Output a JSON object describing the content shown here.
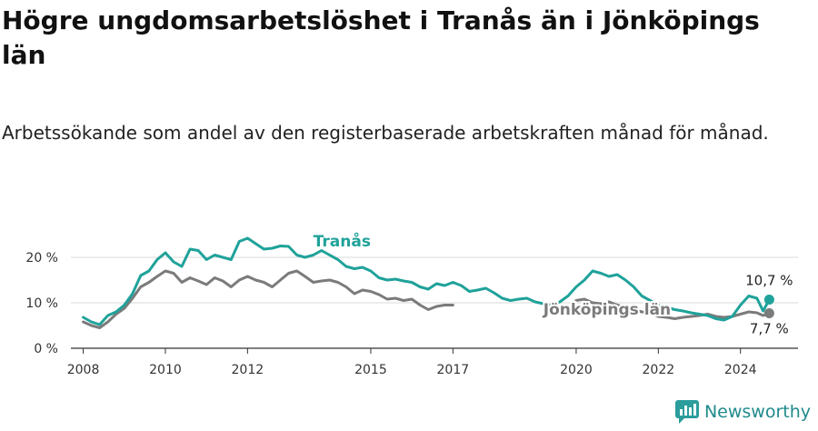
{
  "title": "Högre ungdomsarbetslöshet i Tranås än i Jönköpings län",
  "subtitle": "Arbetssökande som andel av den registerbaserade arbetskraften månad för månad.",
  "brand": {
    "name": "Newsworthy",
    "icon": "bar-chart-logo-icon",
    "color": "#2a9d9c"
  },
  "chart_data": {
    "type": "line",
    "title": "Högre ungdomsarbetslöshet i Tranås än i Jönköpings län",
    "xlabel": "",
    "ylabel": "",
    "xlim": [
      2007.7,
      2025.4
    ],
    "ylim": [
      0,
      25
    ],
    "grid": true,
    "x_ticks": [
      {
        "value": 2008,
        "label": "2008"
      },
      {
        "value": 2010,
        "label": "2010"
      },
      {
        "value": 2012,
        "label": "2012"
      },
      {
        "value": 2015,
        "label": "2015"
      },
      {
        "value": 2017,
        "label": "2017"
      },
      {
        "value": 2020,
        "label": "2020"
      },
      {
        "value": 2022,
        "label": "2022"
      },
      {
        "value": 2024,
        "label": "2024"
      }
    ],
    "y_ticks": [
      {
        "value": 0,
        "label": "0 %"
      },
      {
        "value": 10,
        "label": "10 %"
      },
      {
        "value": 20,
        "label": "20 %"
      }
    ],
    "series": [
      {
        "name": "Tranås",
        "color": "#1fa29a",
        "label_x": 2013.6,
        "label_y": 22.4,
        "end_label": "10,7 %",
        "points": [
          [
            2008.0,
            6.8
          ],
          [
            2008.2,
            5.8
          ],
          [
            2008.4,
            5.2
          ],
          [
            2008.6,
            7.2
          ],
          [
            2008.8,
            8.0
          ],
          [
            2009.0,
            9.5
          ],
          [
            2009.2,
            12.0
          ],
          [
            2009.4,
            16.0
          ],
          [
            2009.6,
            17.0
          ],
          [
            2009.8,
            19.5
          ],
          [
            2010.0,
            21.0
          ],
          [
            2010.2,
            19.0
          ],
          [
            2010.4,
            18.0
          ],
          [
            2010.6,
            21.8
          ],
          [
            2010.8,
            21.5
          ],
          [
            2011.0,
            19.5
          ],
          [
            2011.2,
            20.5
          ],
          [
            2011.4,
            20.0
          ],
          [
            2011.6,
            19.5
          ],
          [
            2011.8,
            23.5
          ],
          [
            2012.0,
            24.2
          ],
          [
            2012.2,
            23.0
          ],
          [
            2012.4,
            21.8
          ],
          [
            2012.6,
            22.0
          ],
          [
            2012.8,
            22.5
          ],
          [
            2013.0,
            22.4
          ],
          [
            2013.2,
            20.5
          ],
          [
            2013.4,
            20.0
          ],
          [
            2013.6,
            20.5
          ],
          [
            2013.8,
            21.5
          ],
          [
            2014.0,
            20.5
          ],
          [
            2014.2,
            19.5
          ],
          [
            2014.4,
            18.0
          ],
          [
            2014.6,
            17.5
          ],
          [
            2014.8,
            17.8
          ],
          [
            2015.0,
            17.0
          ],
          [
            2015.2,
            15.5
          ],
          [
            2015.4,
            15.0
          ],
          [
            2015.6,
            15.2
          ],
          [
            2015.8,
            14.8
          ],
          [
            2016.0,
            14.5
          ],
          [
            2016.2,
            13.5
          ],
          [
            2016.4,
            13.0
          ],
          [
            2016.6,
            14.2
          ],
          [
            2016.8,
            13.8
          ],
          [
            2017.0,
            14.5
          ],
          [
            2017.2,
            13.8
          ],
          [
            2017.4,
            12.5
          ],
          [
            2017.6,
            12.8
          ],
          [
            2017.8,
            13.2
          ],
          [
            2018.0,
            12.2
          ],
          [
            2018.2,
            11.0
          ],
          [
            2018.4,
            10.5
          ],
          [
            2018.6,
            10.8
          ],
          [
            2018.8,
            11.0
          ],
          [
            2019.0,
            10.2
          ],
          [
            2019.2,
            9.8
          ],
          [
            2019.4,
            9.5
          ],
          [
            2019.6,
            10.2
          ],
          [
            2019.8,
            11.5
          ],
          [
            2020.0,
            13.5
          ],
          [
            2020.2,
            15.0
          ],
          [
            2020.4,
            17.0
          ],
          [
            2020.6,
            16.5
          ],
          [
            2020.8,
            15.8
          ],
          [
            2021.0,
            16.2
          ],
          [
            2021.2,
            15.0
          ],
          [
            2021.4,
            13.5
          ],
          [
            2021.6,
            11.5
          ],
          [
            2021.8,
            10.5
          ],
          [
            2022.0,
            9.5
          ],
          [
            2022.2,
            9.0
          ],
          [
            2022.4,
            8.5
          ],
          [
            2022.6,
            8.2
          ],
          [
            2022.8,
            7.8
          ],
          [
            2023.0,
            7.5
          ],
          [
            2023.2,
            7.2
          ],
          [
            2023.4,
            6.5
          ],
          [
            2023.6,
            6.2
          ],
          [
            2023.8,
            7.0
          ],
          [
            2024.0,
            9.5
          ],
          [
            2024.2,
            11.5
          ],
          [
            2024.4,
            11.0
          ],
          [
            2024.55,
            8.2
          ],
          [
            2024.7,
            10.7
          ]
        ]
      },
      {
        "name": "Jönköpings län",
        "color": "#7b7b7b",
        "label_x": 2019.2,
        "label_y": 7.4,
        "end_label": "7,7 %",
        "points": [
          [
            2008.0,
            5.8
          ],
          [
            2008.2,
            5.0
          ],
          [
            2008.4,
            4.5
          ],
          [
            2008.6,
            5.8
          ],
          [
            2008.8,
            7.5
          ],
          [
            2009.0,
            8.8
          ],
          [
            2009.2,
            11.0
          ],
          [
            2009.4,
            13.5
          ],
          [
            2009.6,
            14.5
          ],
          [
            2009.8,
            15.8
          ],
          [
            2010.0,
            17.0
          ],
          [
            2010.2,
            16.5
          ],
          [
            2010.4,
            14.5
          ],
          [
            2010.6,
            15.5
          ],
          [
            2010.8,
            14.8
          ],
          [
            2011.0,
            14.0
          ],
          [
            2011.2,
            15.5
          ],
          [
            2011.4,
            14.8
          ],
          [
            2011.6,
            13.5
          ],
          [
            2011.8,
            15.0
          ],
          [
            2012.0,
            15.8
          ],
          [
            2012.2,
            15.0
          ],
          [
            2012.4,
            14.5
          ],
          [
            2012.6,
            13.5
          ],
          [
            2012.8,
            15.0
          ],
          [
            2013.0,
            16.5
          ],
          [
            2013.2,
            17.0
          ],
          [
            2013.4,
            15.8
          ],
          [
            2013.6,
            14.5
          ],
          [
            2013.8,
            14.8
          ],
          [
            2014.0,
            15.0
          ],
          [
            2014.2,
            14.5
          ],
          [
            2014.4,
            13.5
          ],
          [
            2014.6,
            12.0
          ],
          [
            2014.8,
            12.8
          ],
          [
            2015.0,
            12.5
          ],
          [
            2015.2,
            11.8
          ],
          [
            2015.4,
            10.8
          ],
          [
            2015.6,
            11.0
          ],
          [
            2015.8,
            10.5
          ],
          [
            2016.0,
            10.8
          ],
          [
            2016.2,
            9.5
          ],
          [
            2016.4,
            8.5
          ],
          [
            2016.6,
            9.2
          ],
          [
            2016.8,
            9.5
          ],
          [
            2017.0,
            9.5
          ]
        ],
        "points_tail": [
          [
            2020.0,
            10.5
          ],
          [
            2020.2,
            10.8
          ],
          [
            2020.4,
            10.0
          ],
          [
            2020.6,
            9.8
          ],
          [
            2020.8,
            10.2
          ],
          [
            2021.0,
            9.5
          ],
          [
            2021.2,
            9.0
          ],
          [
            2021.4,
            8.5
          ],
          [
            2021.6,
            8.0
          ],
          [
            2021.8,
            7.8
          ],
          [
            2022.0,
            7.0
          ],
          [
            2022.2,
            6.8
          ],
          [
            2022.4,
            6.5
          ],
          [
            2022.6,
            6.8
          ],
          [
            2022.8,
            7.0
          ],
          [
            2023.0,
            7.2
          ],
          [
            2023.2,
            7.5
          ],
          [
            2023.4,
            7.0
          ],
          [
            2023.6,
            6.8
          ],
          [
            2023.8,
            7.0
          ],
          [
            2024.0,
            7.5
          ],
          [
            2024.2,
            8.0
          ],
          [
            2024.4,
            7.8
          ],
          [
            2024.55,
            7.2
          ],
          [
            2024.7,
            7.7
          ]
        ]
      }
    ]
  }
}
